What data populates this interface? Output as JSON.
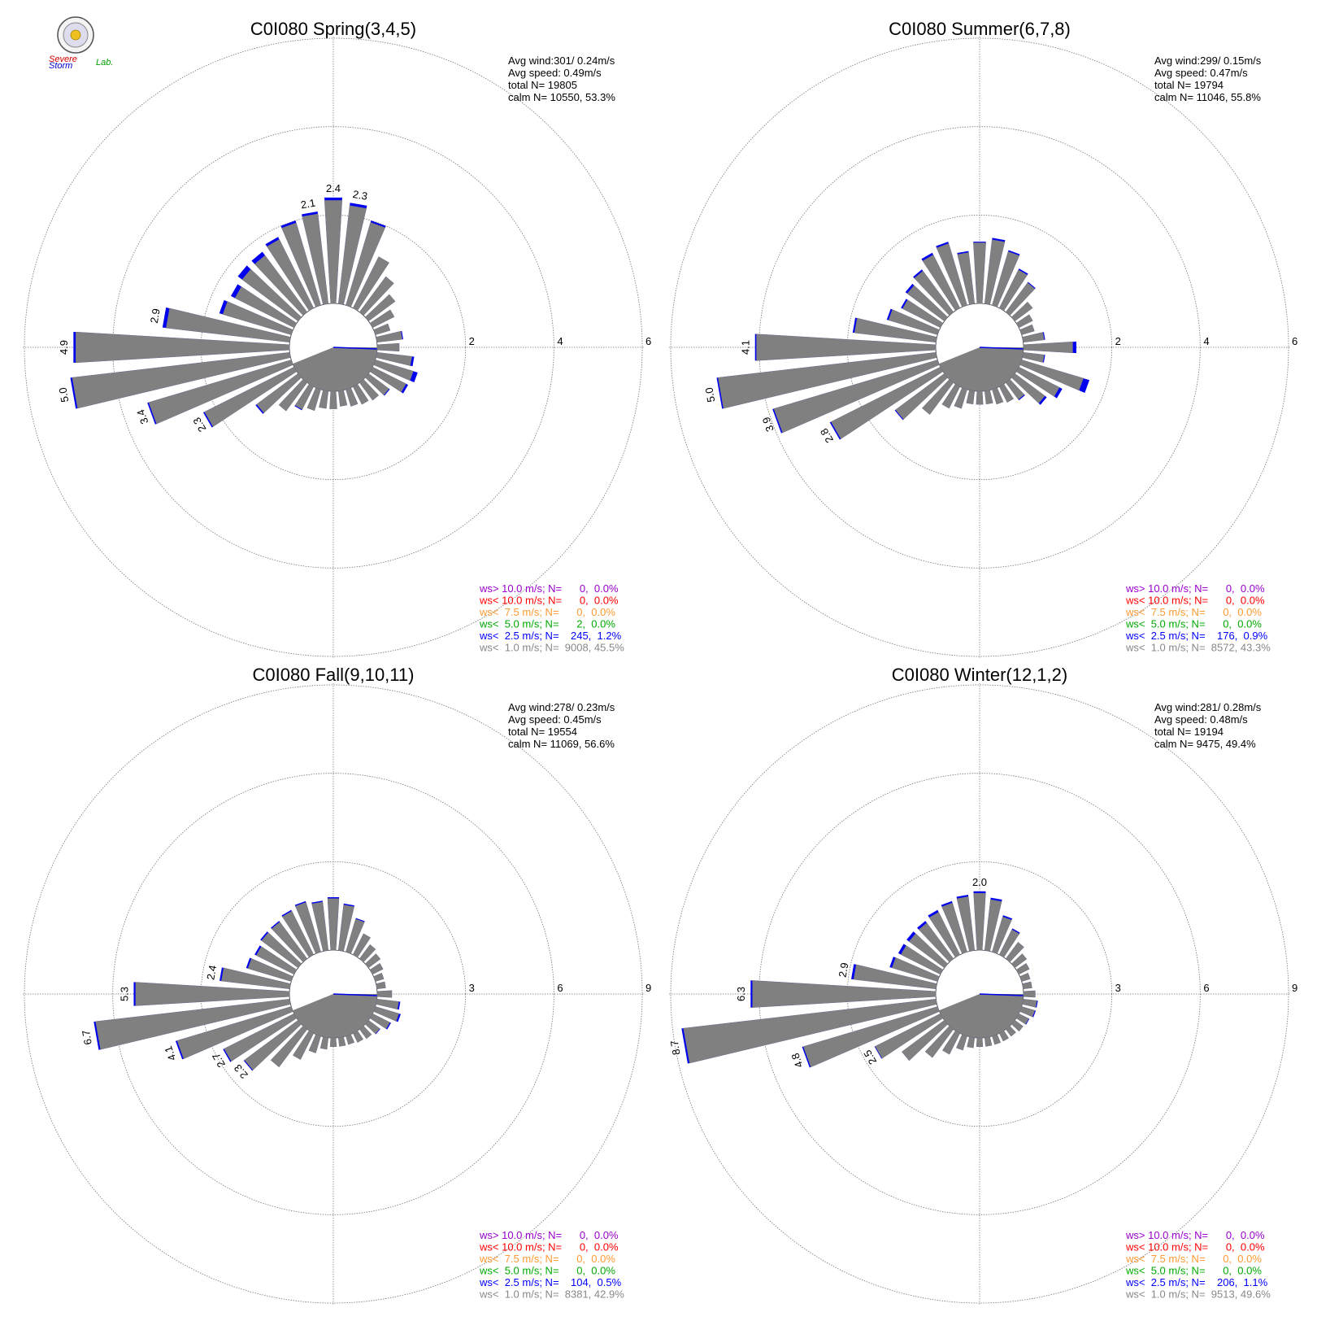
{
  "logo": {
    "text_1": "Severe",
    "text_2": "Storm",
    "text_3": "Lab."
  },
  "chart_data": [
    {
      "type": "polar-bar",
      "title": "C0I080 Spring(3,4,5)",
      "info": [
        "Avg wind:301/ 0.24m/s",
        "Avg speed: 0.49m/s",
        "total N=       19805",
        "calm N=  10550,  53.3%"
      ],
      "rings": [
        2,
        4,
        6
      ],
      "ring_labels": [
        "2",
        "4",
        "6"
      ],
      "max": 6,
      "bars": [
        {
          "dir": 0,
          "value": 2.4,
          "blue": 0.06,
          "label": "2.4"
        },
        {
          "dir": 10,
          "value": 2.3,
          "blue": 0.06,
          "label": "2.3"
        },
        {
          "dir": 20,
          "value": 2.0,
          "blue": 0.04
        },
        {
          "dir": 30,
          "value": 1.3,
          "blue": 0.0
        },
        {
          "dir": 40,
          "value": 1.0,
          "blue": 0.0
        },
        {
          "dir": 50,
          "value": 0.75,
          "blue": 0.0
        },
        {
          "dir": 60,
          "value": 0.55,
          "blue": 0.0
        },
        {
          "dir": 70,
          "value": 0.35,
          "blue": 0.0
        },
        {
          "dir": 80,
          "value": 0.6,
          "blue": 0.02
        },
        {
          "dir": 90,
          "value": 0.5,
          "blue": 0.0
        },
        {
          "dir": 100,
          "value": 0.85,
          "blue": 0.05
        },
        {
          "dir": 110,
          "value": 1.0,
          "blue": 0.1
        },
        {
          "dir": 120,
          "value": 0.9,
          "blue": 0.05
        },
        {
          "dir": 130,
          "value": 0.6,
          "blue": 0.02
        },
        {
          "dir": 140,
          "value": 0.5,
          "blue": 0.0
        },
        {
          "dir": 150,
          "value": 0.45,
          "blue": 0.0
        },
        {
          "dir": 160,
          "value": 0.4,
          "blue": 0.0
        },
        {
          "dir": 170,
          "value": 0.35,
          "blue": 0.0
        },
        {
          "dir": 180,
          "value": 0.4,
          "blue": 0.0
        },
        {
          "dir": 190,
          "value": 0.4,
          "blue": 0.0
        },
        {
          "dir": 200,
          "value": 0.5,
          "blue": 0.0
        },
        {
          "dir": 210,
          "value": 0.6,
          "blue": 0.02
        },
        {
          "dir": 220,
          "value": 0.8,
          "blue": 0.0
        },
        {
          "dir": 230,
          "value": 1.2,
          "blue": 0.03
        },
        {
          "dir": 240,
          "value": 2.3,
          "blue": 0.03,
          "label": "2.3"
        },
        {
          "dir": 250,
          "value": 3.4,
          "blue": 0.03,
          "label": "3.4"
        },
        {
          "dir": 260,
          "value": 5.0,
          "blue": 0.04,
          "label": "5.0"
        },
        {
          "dir": 270,
          "value": 4.9,
          "blue": 0.05,
          "label": "4.9"
        },
        {
          "dir": 280,
          "value": 2.9,
          "blue": 0.08,
          "label": "2.9"
        },
        {
          "dir": 290,
          "value": 1.7,
          "blue": 0.08
        },
        {
          "dir": 300,
          "value": 1.6,
          "blue": 0.1
        },
        {
          "dir": 310,
          "value": 1.7,
          "blue": 0.12
        },
        {
          "dir": 320,
          "value": 1.7,
          "blue": 0.1
        },
        {
          "dir": 330,
          "value": 1.8,
          "blue": 0.06
        },
        {
          "dir": 340,
          "value": 2.0,
          "blue": 0.05
        },
        {
          "dir": 350,
          "value": 2.1,
          "blue": 0.05,
          "label": "2.1"
        }
      ],
      "legend": [
        {
          "text": "ws> 10.0 m/s; N=      0,  0.0%",
          "color": "#9900cc"
        },
        {
          "text": "ws< 10.0 m/s; N=      0,  0.0%",
          "color": "#ff0000"
        },
        {
          "text": "ws<  7.5 m/s; N=      0,  0.0%",
          "color": "#ff9933"
        },
        {
          "text": "ws<  5.0 m/s; N=      2,  0.0%",
          "color": "#00aa00"
        },
        {
          "text": "ws<  2.5 m/s; N=    245,  1.2%",
          "color": "#0000ff"
        },
        {
          "text": "ws<  1.0 m/s; N=  9008, 45.5%",
          "color": "#888888"
        }
      ]
    },
    {
      "type": "polar-bar",
      "title": "C0I080 Summer(6,7,8)",
      "info": [
        "Avg wind:299/ 0.15m/s",
        "Avg speed: 0.47m/s",
        "total N=       19794",
        "calm N=  11046,  55.8%"
      ],
      "rings": [
        2,
        4,
        6
      ],
      "ring_labels": [
        "2",
        "4",
        "6"
      ],
      "max": 6,
      "bars": [
        {
          "dir": 0,
          "value": 1.4,
          "blue": 0.02
        },
        {
          "dir": 10,
          "value": 1.5,
          "blue": 0.04
        },
        {
          "dir": 20,
          "value": 1.3,
          "blue": 0.03
        },
        {
          "dir": 30,
          "value": 1.0,
          "blue": 0.03
        },
        {
          "dir": 40,
          "value": 0.85,
          "blue": 0.02
        },
        {
          "dir": 50,
          "value": 0.5,
          "blue": 0.0
        },
        {
          "dir": 60,
          "value": 0.35,
          "blue": 0.0
        },
        {
          "dir": 70,
          "value": 0.3,
          "blue": 0.0
        },
        {
          "dir": 80,
          "value": 0.5,
          "blue": 0.02
        },
        {
          "dir": 90,
          "value": 1.2,
          "blue": 0.08
        },
        {
          "dir": 100,
          "value": 0.5,
          "blue": 0.02
        },
        {
          "dir": 110,
          "value": 1.6,
          "blue": 0.14
        },
        {
          "dir": 120,
          "value": 1.1,
          "blue": 0.07
        },
        {
          "dir": 130,
          "value": 0.9,
          "blue": 0.05
        },
        {
          "dir": 140,
          "value": 0.5,
          "blue": 0.02
        },
        {
          "dir": 150,
          "value": 0.4,
          "blue": 0.0
        },
        {
          "dir": 160,
          "value": 0.35,
          "blue": 0.0
        },
        {
          "dir": 170,
          "value": 0.3,
          "blue": 0.0
        },
        {
          "dir": 180,
          "value": 0.3,
          "blue": 0.0
        },
        {
          "dir": 190,
          "value": 0.3,
          "blue": 0.0
        },
        {
          "dir": 200,
          "value": 0.45,
          "blue": 0.0
        },
        {
          "dir": 210,
          "value": 0.55,
          "blue": 0.0
        },
        {
          "dir": 220,
          "value": 0.9,
          "blue": 0.0
        },
        {
          "dir": 230,
          "value": 1.4,
          "blue": 0.02
        },
        {
          "dir": 240,
          "value": 2.8,
          "blue": 0.03,
          "label": "2.8"
        },
        {
          "dir": 250,
          "value": 3.9,
          "blue": 0.03,
          "label": "3.9"
        },
        {
          "dir": 260,
          "value": 5.0,
          "blue": 0.03,
          "label": "5.0"
        },
        {
          "dir": 270,
          "value": 4.1,
          "blue": 0.03,
          "label": "4.1"
        },
        {
          "dir": 280,
          "value": 1.9,
          "blue": 0.04
        },
        {
          "dir": 290,
          "value": 1.2,
          "blue": 0.04
        },
        {
          "dir": 300,
          "value": 1.0,
          "blue": 0.04
        },
        {
          "dir": 310,
          "value": 1.1,
          "blue": 0.05
        },
        {
          "dir": 320,
          "value": 1.2,
          "blue": 0.04
        },
        {
          "dir": 330,
          "value": 1.4,
          "blue": 0.05
        },
        {
          "dir": 340,
          "value": 1.5,
          "blue": 0.04
        },
        {
          "dir": 350,
          "value": 1.2,
          "blue": 0.03
        }
      ],
      "legend": [
        {
          "text": "ws> 10.0 m/s; N=      0,  0.0%",
          "color": "#9900cc"
        },
        {
          "text": "ws< 10.0 m/s; N=      0,  0.0%",
          "color": "#ff0000"
        },
        {
          "text": "ws<  7.5 m/s; N=      0,  0.0%",
          "color": "#ff9933"
        },
        {
          "text": "ws<  5.0 m/s; N=      0,  0.0%",
          "color": "#00aa00"
        },
        {
          "text": "ws<  2.5 m/s; N=    176,  0.9%",
          "color": "#0000ff"
        },
        {
          "text": "ws<  1.0 m/s; N=  8572, 43.3%",
          "color": "#888888"
        }
      ]
    },
    {
      "type": "polar-bar",
      "title": "C0I080 Fall(9,10,11)",
      "info": [
        "Avg wind:278/ 0.23m/s",
        "Avg speed: 0.45m/s",
        "total N=       19554",
        "calm N=  11069,  56.6%"
      ],
      "rings": [
        3,
        6,
        9
      ],
      "ring_labels": [
        "3",
        "6",
        "9"
      ],
      "max": 9,
      "bars": [
        {
          "dir": 0,
          "value": 1.8,
          "blue": 0.04
        },
        {
          "dir": 10,
          "value": 1.6,
          "blue": 0.04
        },
        {
          "dir": 20,
          "value": 1.2,
          "blue": 0.03
        },
        {
          "dir": 30,
          "value": 0.8,
          "blue": 0.0
        },
        {
          "dir": 40,
          "value": 0.6,
          "blue": 0.0
        },
        {
          "dir": 50,
          "value": 0.5,
          "blue": 0.0
        },
        {
          "dir": 60,
          "value": 0.4,
          "blue": 0.0
        },
        {
          "dir": 70,
          "value": 0.3,
          "blue": 0.0
        },
        {
          "dir": 80,
          "value": 0.3,
          "blue": 0.0
        },
        {
          "dir": 90,
          "value": 0.5,
          "blue": 0.0
        },
        {
          "dir": 100,
          "value": 0.8,
          "blue": 0.05
        },
        {
          "dir": 110,
          "value": 0.9,
          "blue": 0.06
        },
        {
          "dir": 120,
          "value": 0.7,
          "blue": 0.04
        },
        {
          "dir": 130,
          "value": 0.5,
          "blue": 0.02
        },
        {
          "dir": 140,
          "value": 0.4,
          "blue": 0.0
        },
        {
          "dir": 150,
          "value": 0.35,
          "blue": 0.0
        },
        {
          "dir": 160,
          "value": 0.3,
          "blue": 0.0
        },
        {
          "dir": 170,
          "value": 0.3,
          "blue": 0.0
        },
        {
          "dir": 180,
          "value": 0.3,
          "blue": 0.0
        },
        {
          "dir": 190,
          "value": 0.4,
          "blue": 0.0
        },
        {
          "dir": 200,
          "value": 0.6,
          "blue": 0.0
        },
        {
          "dir": 210,
          "value": 1.0,
          "blue": 0.0
        },
        {
          "dir": 220,
          "value": 1.6,
          "blue": 0.0
        },
        {
          "dir": 230,
          "value": 2.3,
          "blue": 0.03,
          "label": "2.3"
        },
        {
          "dir": 240,
          "value": 2.7,
          "blue": 0.04,
          "label": "2.7"
        },
        {
          "dir": 250,
          "value": 4.1,
          "blue": 0.05,
          "label": "4.1"
        },
        {
          "dir": 260,
          "value": 6.7,
          "blue": 0.06,
          "label": "6.7"
        },
        {
          "dir": 270,
          "value": 5.3,
          "blue": 0.06,
          "label": "5.3"
        },
        {
          "dir": 280,
          "value": 2.4,
          "blue": 0.06,
          "label": "2.4"
        },
        {
          "dir": 290,
          "value": 1.6,
          "blue": 0.06
        },
        {
          "dir": 300,
          "value": 1.5,
          "blue": 0.06
        },
        {
          "dir": 310,
          "value": 1.6,
          "blue": 0.05
        },
        {
          "dir": 320,
          "value": 1.6,
          "blue": 0.04
        },
        {
          "dir": 330,
          "value": 1.7,
          "blue": 0.04
        },
        {
          "dir": 340,
          "value": 1.8,
          "blue": 0.04
        },
        {
          "dir": 350,
          "value": 1.7,
          "blue": 0.04
        }
      ],
      "legend": [
        {
          "text": "ws> 10.0 m/s; N=      0,  0.0%",
          "color": "#9900cc"
        },
        {
          "text": "ws< 10.0 m/s; N=      0,  0.0%",
          "color": "#ff0000"
        },
        {
          "text": "ws<  7.5 m/s; N=      0,  0.0%",
          "color": "#ff9933"
        },
        {
          "text": "ws<  5.0 m/s; N=      0,  0.0%",
          "color": "#00aa00"
        },
        {
          "text": "ws<  2.5 m/s; N=    104,  0.5%",
          "color": "#0000ff"
        },
        {
          "text": "ws<  1.0 m/s; N=  8381, 42.9%",
          "color": "#888888"
        }
      ]
    },
    {
      "type": "polar-bar",
      "title": "C0I080 Winter(12,1,2)",
      "info": [
        "Avg wind:281/ 0.28m/s",
        "Avg speed: 0.48m/s",
        "total N=       19194",
        "calm N=   9475,  49.4%"
      ],
      "rings": [
        3,
        6,
        9
      ],
      "ring_labels": [
        "3",
        "6",
        "9"
      ],
      "max": 9,
      "bars": [
        {
          "dir": 0,
          "value": 2.0,
          "blue": 0.06,
          "label": "2.0"
        },
        {
          "dir": 10,
          "value": 1.8,
          "blue": 0.06
        },
        {
          "dir": 20,
          "value": 1.3,
          "blue": 0.05
        },
        {
          "dir": 30,
          "value": 1.0,
          "blue": 0.04
        },
        {
          "dir": 40,
          "value": 0.7,
          "blue": 0.0
        },
        {
          "dir": 50,
          "value": 0.5,
          "blue": 0.0
        },
        {
          "dir": 60,
          "value": 0.4,
          "blue": 0.0
        },
        {
          "dir": 70,
          "value": 0.3,
          "blue": 0.0
        },
        {
          "dir": 80,
          "value": 0.3,
          "blue": 0.0
        },
        {
          "dir": 90,
          "value": 0.4,
          "blue": 0.0
        },
        {
          "dir": 100,
          "value": 0.5,
          "blue": 0.03
        },
        {
          "dir": 110,
          "value": 0.5,
          "blue": 0.03
        },
        {
          "dir": 120,
          "value": 0.4,
          "blue": 0.02
        },
        {
          "dir": 130,
          "value": 0.35,
          "blue": 0.0
        },
        {
          "dir": 140,
          "value": 0.3,
          "blue": 0.0
        },
        {
          "dir": 150,
          "value": 0.3,
          "blue": 0.0
        },
        {
          "dir": 160,
          "value": 0.3,
          "blue": 0.0
        },
        {
          "dir": 170,
          "value": 0.3,
          "blue": 0.0
        },
        {
          "dir": 180,
          "value": 0.3,
          "blue": 0.0
        },
        {
          "dir": 190,
          "value": 0.35,
          "blue": 0.0
        },
        {
          "dir": 200,
          "value": 0.5,
          "blue": 0.0
        },
        {
          "dir": 210,
          "value": 0.8,
          "blue": 0.0
        },
        {
          "dir": 220,
          "value": 1.2,
          "blue": 0.0
        },
        {
          "dir": 230,
          "value": 1.8,
          "blue": 0.0
        },
        {
          "dir": 240,
          "value": 2.5,
          "blue": 0.02,
          "label": "2.5"
        },
        {
          "dir": 250,
          "value": 4.8,
          "blue": 0.04,
          "label": "4.8"
        },
        {
          "dir": 260,
          "value": 8.7,
          "blue": 0.06,
          "label": "8.7"
        },
        {
          "dir": 270,
          "value": 6.3,
          "blue": 0.06,
          "label": "6.3"
        },
        {
          "dir": 280,
          "value": 2.9,
          "blue": 0.08,
          "label": "2.9"
        },
        {
          "dir": 290,
          "value": 1.7,
          "blue": 0.08
        },
        {
          "dir": 300,
          "value": 1.6,
          "blue": 0.1
        },
        {
          "dir": 310,
          "value": 1.6,
          "blue": 0.1
        },
        {
          "dir": 320,
          "value": 1.6,
          "blue": 0.08
        },
        {
          "dir": 330,
          "value": 1.7,
          "blue": 0.08
        },
        {
          "dir": 340,
          "value": 1.8,
          "blue": 0.06
        },
        {
          "dir": 350,
          "value": 1.9,
          "blue": 0.06
        }
      ],
      "legend": [
        {
          "text": "ws> 10.0 m/s; N=      0,  0.0%",
          "color": "#9900cc"
        },
        {
          "text": "ws< 10.0 m/s; N=      0,  0.0%",
          "color": "#ff0000"
        },
        {
          "text": "ws<  7.5 m/s; N=      0,  0.0%",
          "color": "#ff9933"
        },
        {
          "text": "ws<  5.0 m/s; N=      0,  0.0%",
          "color": "#00aa00"
        },
        {
          "text": "ws<  2.5 m/s; N=    206,  1.1%",
          "color": "#0000ff"
        },
        {
          "text": "ws<  1.0 m/s; N=  9513, 49.6%",
          "color": "#888888"
        }
      ]
    }
  ],
  "colors": {
    "bar": "#808080",
    "bar_edge": "#6a6a8a",
    "blue": "#0000ee",
    "grid": "#777777",
    "calm": "#808080"
  }
}
